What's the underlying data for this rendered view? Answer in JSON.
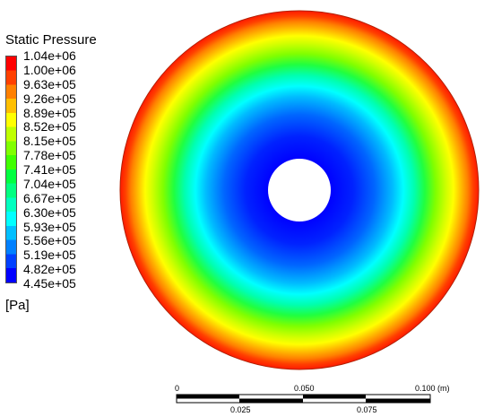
{
  "legend": {
    "title": "Static Pressure",
    "unit": "[Pa]",
    "tick_labels": [
      "1.04e+06",
      "1.00e+06",
      "9.63e+05",
      "9.26e+05",
      "8.89e+05",
      "8.52e+05",
      "8.15e+05",
      "7.78e+05",
      "7.41e+05",
      "7.04e+05",
      "6.67e+05",
      "6.30e+05",
      "5.93e+05",
      "5.56e+05",
      "5.19e+05",
      "4.82e+05",
      "4.45e+05"
    ],
    "colors": [
      "#ff0000",
      "#ff4000",
      "#ff8000",
      "#ffbf00",
      "#ffff00",
      "#bfff00",
      "#80ff00",
      "#40ff00",
      "#00ff40",
      "#00ff80",
      "#00ffbf",
      "#00ffff",
      "#00bfff",
      "#0080ff",
      "#0040ff",
      "#0000ff"
    ]
  },
  "scale_bar": {
    "top_labels": [
      "0",
      "0.050",
      "0.100 (m)"
    ],
    "bottom_labels": [
      "0.025",
      "0.075"
    ]
  }
}
